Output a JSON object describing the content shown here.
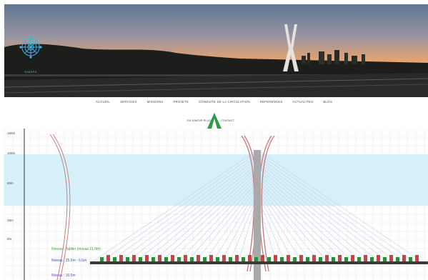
{
  "hero": {
    "logo_text": "SIMSPA",
    "colors": {
      "sky_top": "#6b7f9c",
      "sky_glow": "#f0a86a",
      "ground": "#1f201e"
    }
  },
  "nav": {
    "items": [
      "ACCUEIL",
      "SERVICES",
      "MISSIONS",
      "PROJETS",
      "CONDUITE DE LA CIRCULATION",
      "REFERENCES",
      "ACTUALITES",
      "BLOG"
    ]
  },
  "subnav": {
    "left": "EN SAVOIR PLUS",
    "right": "CONTACT"
  },
  "diagram": {
    "scale_labels": [
      "150m",
      "100m",
      "50m",
      "25m",
      "0m"
    ],
    "floor_labels": [
      "Niveau : Tablier (niveau 11.0m)",
      "Niveau : 25.5m - 6.5m",
      "Niveau : 16.5m"
    ],
    "colors": {
      "band": "#cfeef9",
      "pylon": "#a8a8a8",
      "cables": "#c3c8e8",
      "arch": "#c06e6e",
      "text_green": "#3f9f3f",
      "text_blue": "#2f4fbf",
      "text_purple": "#7f3fbf"
    }
  }
}
